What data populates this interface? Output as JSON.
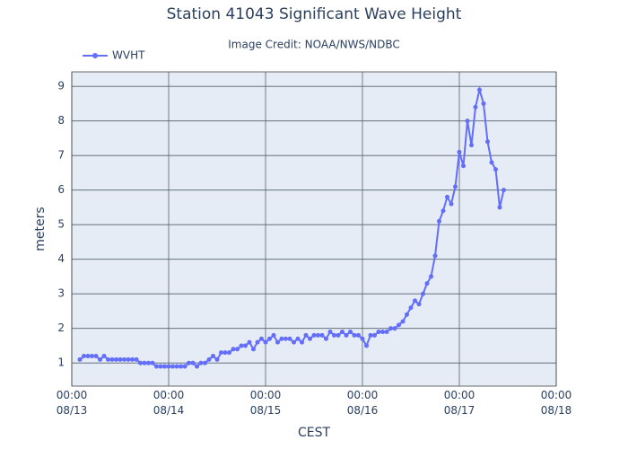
{
  "chart_data": {
    "type": "line",
    "title": "Station 41043 Significant Wave Height",
    "subtitle": "Image Credit: NOAA/NWS/NDBC",
    "x_label": "CEST",
    "y_label": "meters",
    "legend": "top-left",
    "grid": true,
    "xlim": [
      "08/13 00:00",
      "08/18 00:00"
    ],
    "xticks": [
      {
        "value": "08/13 00:00",
        "label": "00:00\n08/13"
      },
      {
        "value": "08/14 00:00",
        "label": "00:00\n08/14"
      },
      {
        "value": "08/15 00:00",
        "label": "00:00\n08/15"
      },
      {
        "value": "08/16 00:00",
        "label": "00:00\n08/16"
      },
      {
        "value": "08/17 00:00",
        "label": "00:00\n08/17"
      },
      {
        "value": "08/18 00:00",
        "label": "00:00\n08/18"
      }
    ],
    "ylim": [
      0.33,
      9.42
    ],
    "yticks": [
      1,
      2,
      3,
      4,
      5,
      6,
      7,
      8,
      9
    ],
    "x": [
      "08/13 02:00",
      "08/13 03:00",
      "08/13 04:00",
      "08/13 05:00",
      "08/13 06:00",
      "08/13 07:00",
      "08/13 08:00",
      "08/13 09:00",
      "08/13 10:00",
      "08/13 11:00",
      "08/13 12:00",
      "08/13 13:00",
      "08/13 14:00",
      "08/13 15:00",
      "08/13 16:00",
      "08/13 17:00",
      "08/13 18:00",
      "08/13 19:00",
      "08/13 20:00",
      "08/13 21:00",
      "08/13 22:00",
      "08/13 23:00",
      "08/14 00:00",
      "08/14 01:00",
      "08/14 02:00",
      "08/14 03:00",
      "08/14 04:00",
      "08/14 05:00",
      "08/14 06:00",
      "08/14 07:00",
      "08/14 08:00",
      "08/14 09:00",
      "08/14 10:00",
      "08/14 11:00",
      "08/14 12:00",
      "08/14 13:00",
      "08/14 14:00",
      "08/14 15:00",
      "08/14 16:00",
      "08/14 17:00",
      "08/14 18:00",
      "08/14 19:00",
      "08/14 20:00",
      "08/14 21:00",
      "08/14 22:00",
      "08/14 23:00",
      "08/15 00:00",
      "08/15 01:00",
      "08/15 02:00",
      "08/15 03:00",
      "08/15 04:00",
      "08/15 05:00",
      "08/15 06:00",
      "08/15 07:00",
      "08/15 08:00",
      "08/15 09:00",
      "08/15 10:00",
      "08/15 11:00",
      "08/15 12:00",
      "08/15 13:00",
      "08/15 14:00",
      "08/15 15:00",
      "08/15 16:00",
      "08/15 17:00",
      "08/15 18:00",
      "08/15 19:00",
      "08/15 20:00",
      "08/15 21:00",
      "08/15 22:00",
      "08/15 23:00",
      "08/16 00:00",
      "08/16 01:00",
      "08/16 02:00",
      "08/16 03:00",
      "08/16 04:00",
      "08/16 05:00",
      "08/16 06:00",
      "08/16 07:00",
      "08/16 08:00",
      "08/16 09:00",
      "08/16 10:00",
      "08/16 11:00",
      "08/16 12:00",
      "08/16 13:00",
      "08/16 14:00",
      "08/16 15:00",
      "08/16 16:00",
      "08/16 17:00",
      "08/16 18:00",
      "08/16 19:00",
      "08/16 20:00",
      "08/16 21:00",
      "08/16 22:00",
      "08/16 23:00",
      "08/17 00:00",
      "08/17 01:00",
      "08/17 02:00",
      "08/17 03:00",
      "08/17 04:00",
      "08/17 05:00",
      "08/17 06:00",
      "08/17 07:00",
      "08/17 08:00",
      "08/17 09:00",
      "08/17 10:00",
      "08/17 11:00"
    ],
    "series": [
      {
        "name": "WVHT",
        "color": "#636efa",
        "values": [
          1.1,
          1.2,
          1.2,
          1.2,
          1.2,
          1.1,
          1.2,
          1.1,
          1.1,
          1.1,
          1.1,
          1.1,
          1.1,
          1.1,
          1.1,
          1.0,
          1.0,
          1.0,
          1.0,
          0.9,
          0.9,
          0.9,
          0.9,
          0.9,
          0.9,
          0.9,
          0.9,
          1.0,
          1.0,
          0.9,
          1.0,
          1.0,
          1.1,
          1.2,
          1.1,
          1.3,
          1.3,
          1.3,
          1.4,
          1.4,
          1.5,
          1.5,
          1.6,
          1.4,
          1.6,
          1.7,
          1.6,
          1.7,
          1.8,
          1.6,
          1.7,
          1.7,
          1.7,
          1.6,
          1.7,
          1.6,
          1.8,
          1.7,
          1.8,
          1.8,
          1.8,
          1.7,
          1.9,
          1.8,
          1.8,
          1.9,
          1.8,
          1.9,
          1.8,
          1.8,
          1.7,
          1.5,
          1.8,
          1.8,
          1.9,
          1.9,
          1.9,
          2.0,
          2.0,
          2.1,
          2.2,
          2.4,
          2.6,
          2.8,
          2.7,
          3.0,
          3.3,
          3.5,
          4.1,
          5.1,
          5.4,
          5.8,
          5.6,
          6.1,
          7.1,
          6.7,
          8.0,
          7.3,
          8.4,
          8.9,
          8.5,
          7.4,
          6.8,
          6.6,
          5.5,
          6.0
        ]
      }
    ]
  }
}
